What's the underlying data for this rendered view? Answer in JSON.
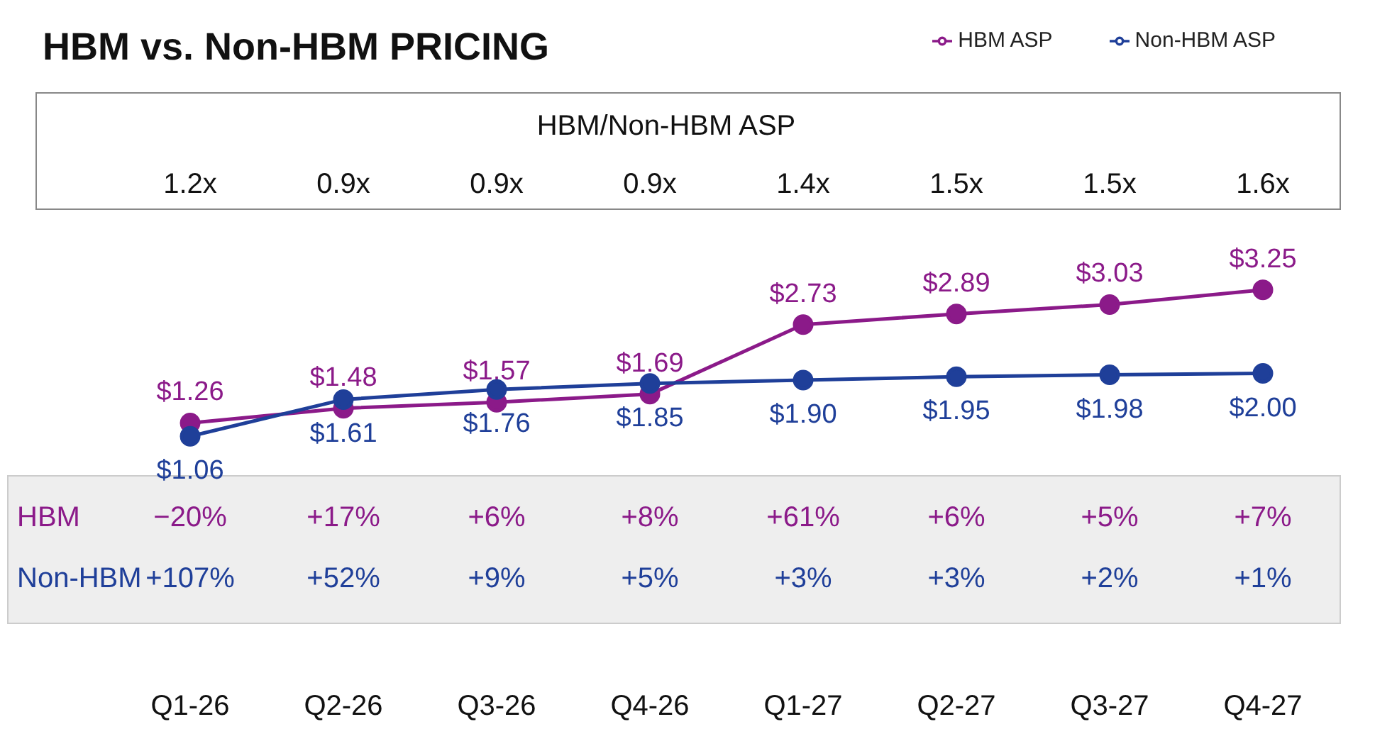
{
  "chart_data": {
    "type": "line",
    "title": "HBM vs. Non‑HBM PRICING",
    "categories": [
      "Q1‑26",
      "Q2‑26",
      "Q3‑26",
      "Q4‑26",
      "Q1‑27",
      "Q2‑27",
      "Q3‑27",
      "Q4‑27"
    ],
    "series": [
      {
        "name": "HBM ASP",
        "color": "#8b1a89",
        "values": [
          1.26,
          1.48,
          1.57,
          1.69,
          2.73,
          2.89,
          3.03,
          3.25
        ],
        "value_labels": [
          "$1.26",
          "$1.48",
          "$1.57",
          "$1.69",
          "$2.73",
          "$2.89",
          "$3.03",
          "$3.25"
        ]
      },
      {
        "name": "Non‑HBM ASP",
        "color": "#1f3f99",
        "values": [
          1.06,
          1.61,
          1.76,
          1.85,
          1.9,
          1.95,
          1.98,
          2.0
        ],
        "value_labels": [
          "$1.06",
          "$1.61",
          "$1.76",
          "$1.85",
          "$1.90",
          "$1.95",
          "$1.98",
          "$2.00"
        ]
      }
    ],
    "legend": "top right",
    "marker": "circle",
    "grid": false,
    "annotations": [
      "HBM/Non‑HBM ASP",
      "1.2x",
      "0.9x",
      "0.9x",
      "0.9x",
      "1.4x",
      "1.5x",
      "1.5x",
      "1.6x",
      "HBM",
      "−20%",
      "+17%",
      "+6%",
      "+8%",
      "+61%",
      "+6%",
      "+5%",
      "+7%",
      "Non‑HBM",
      "+107%",
      "+52%",
      "+9%",
      "+5%",
      "+3%",
      "+3%",
      "+2%",
      "+1%"
    ]
  }
}
